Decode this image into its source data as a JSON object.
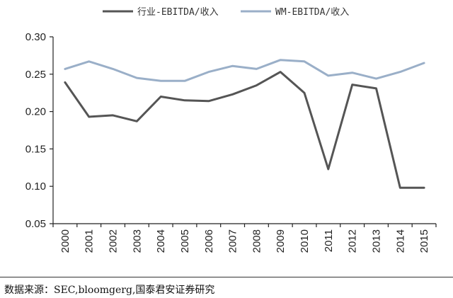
{
  "chart_data": {
    "type": "line",
    "title": "",
    "xlabel": "",
    "ylabel": "",
    "x": [
      "2000",
      "2001",
      "2002",
      "2003",
      "2004",
      "2005",
      "2006",
      "2007",
      "2008",
      "2009",
      "2010",
      "2011",
      "2012",
      "2013",
      "2014",
      "2015"
    ],
    "ylim": [
      0.05,
      0.3
    ],
    "yticks": [
      "0.05",
      "0.10",
      "0.15",
      "0.20",
      "0.25",
      "0.30"
    ],
    "grid": false,
    "legend_position": "top",
    "series": [
      {
        "name": "行业-EBITDA/收入",
        "color": "#555555",
        "values": [
          0.239,
          0.193,
          0.195,
          0.187,
          0.22,
          0.215,
          0.214,
          0.223,
          0.235,
          0.253,
          0.225,
          0.123,
          0.236,
          0.231,
          0.098,
          0.098
        ]
      },
      {
        "name": "WM-EBITDA/收入",
        "color": "#9aafc8",
        "values": [
          0.257,
          0.267,
          0.257,
          0.245,
          0.241,
          0.241,
          0.253,
          0.261,
          0.257,
          0.269,
          0.267,
          0.248,
          0.252,
          0.244,
          0.253,
          0.265
        ]
      }
    ]
  },
  "source_note": "数据来源：SEC,bloomgerg,国泰君安证券研究"
}
